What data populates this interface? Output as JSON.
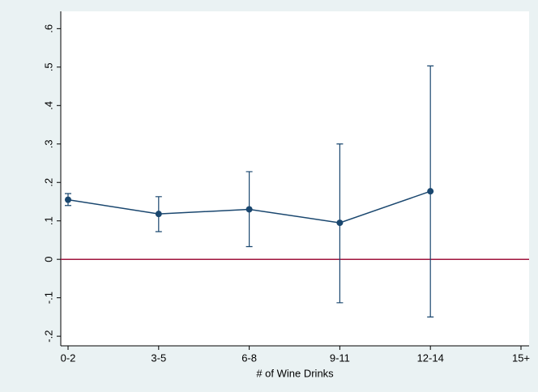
{
  "chart_data": {
    "type": "line",
    "x_label": "# of Wine Drinks",
    "categories": [
      "0-2",
      "3-5",
      "6-8",
      "9-11",
      "12-14",
      "15+"
    ],
    "series": [
      {
        "color": "#1a476f",
        "values": [
          0.155,
          0.118,
          0.13,
          0.095,
          0.177,
          null
        ],
        "ci_low": [
          0.14,
          0.072,
          0.033,
          -0.113,
          -0.15,
          null
        ],
        "ci_high": [
          0.171,
          0.163,
          0.228,
          0.3,
          0.503,
          null
        ]
      }
    ],
    "ylim": [
      -0.225,
      0.645
    ],
    "yticks": [
      {
        "value": -0.2,
        "label": "-.2"
      },
      {
        "value": -0.1,
        "label": "-.1"
      },
      0,
      {
        "value": 0.1,
        "label": ".1"
      },
      {
        "value": 0.2,
        "label": ".2"
      },
      {
        "value": 0.3,
        "label": ".3"
      },
      {
        "value": 0.4,
        "label": ".4"
      },
      {
        "value": 0.5,
        "label": ".5"
      },
      {
        "value": 0.6,
        "label": ".6"
      }
    ],
    "reference_line": {
      "value": 0,
      "color": "#a0153e"
    }
  }
}
